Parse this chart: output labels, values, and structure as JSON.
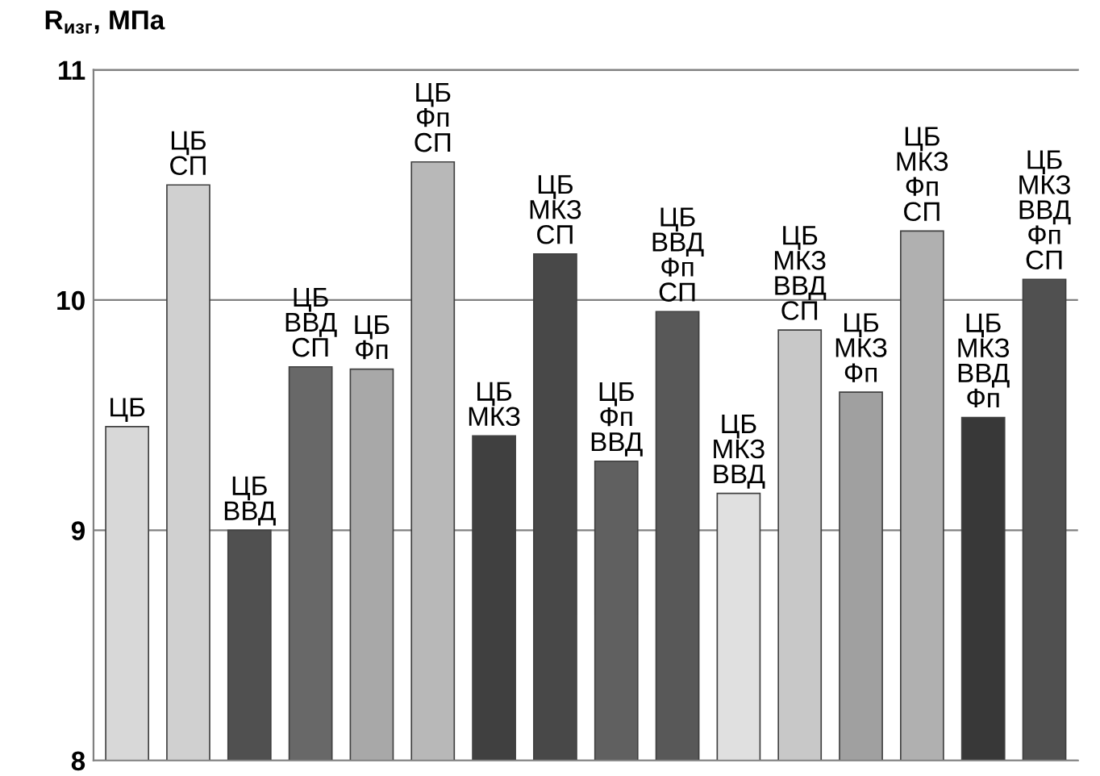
{
  "chart_data": {
    "type": "bar",
    "ylabel": "R$_{изг}$, МПа",
    "categories": [
      "ЦБ",
      "ЦБ\nСП",
      "ЦБ\nВВД",
      "ЦБ\nВВД\nСП",
      "ЦБ\nФп",
      "ЦБ\nФп\nСП",
      "ЦБ\nМКЗ",
      "ЦБ\nМКЗ\nСП",
      "ЦБ\nФп\nВВД",
      "ЦБ\nВВД\nФп\nСП",
      "ЦБ\nМКЗ\nВВД",
      "ЦБ\nМКЗ\nВВД\nСП",
      "ЦБ\nМКЗ\nФп",
      "ЦБ\nМКЗ\nФп\nСП",
      "ЦБ\nМКЗ\nВВД\nФп",
      "ЦБ\nМКЗ\nВВД\nФп\nСП"
    ],
    "values": [
      9.45,
      10.5,
      9.0,
      9.71,
      9.7,
      10.6,
      9.41,
      10.2,
      9.3,
      9.95,
      9.16,
      9.87,
      9.6,
      10.3,
      9.49,
      10.09
    ],
    "colors": [
      "#d8d8d8",
      "#d0d0d0",
      "#505050",
      "#686868",
      "#a8a8a8",
      "#b8b8b8",
      "#404040",
      "#484848",
      "#606060",
      "#585858",
      "#e0e0e0",
      "#c8c8c8",
      "#a0a0a0",
      "#b0b0b0",
      "#383838",
      "#505050"
    ],
    "ylim": [
      8,
      11
    ],
    "yticks": [
      8,
      9,
      10,
      11
    ],
    "grid": "y"
  }
}
